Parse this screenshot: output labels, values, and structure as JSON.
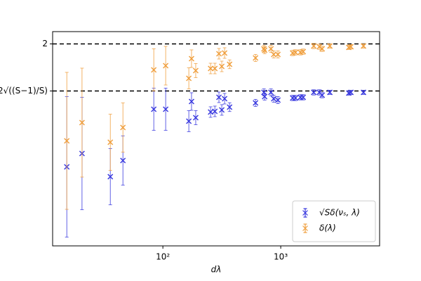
{
  "chart_data": {
    "type": "scatter",
    "xscale": "log",
    "grid": true,
    "legend": "lower right",
    "xlabel": "dλ",
    "xlim": [
      11.6,
      6900
    ],
    "xticks": [
      {
        "value": 100,
        "label": "10²"
      },
      {
        "value": 1000,
        "label": "10³"
      }
    ],
    "ylim": [
      0.85,
      2.07
    ],
    "yticks": [
      {
        "value": 1.732,
        "label": "2√((S−1)/S)"
      },
      2
    ],
    "x": [
      15.3,
      20.6,
      35.8,
      45.8,
      83.7,
      105.6,
      166,
      175,
      190,
      254,
      276,
      299,
      316,
      334,
      368,
      611,
      720,
      730,
      826,
      872,
      946,
      1262,
      1334,
      1468,
      1550,
      1905,
      2125,
      2245,
      2611,
      3777,
      3939,
      5036
    ],
    "series": [
      {
        "name": "√Sδ(νₛ, λ)",
        "color": "#3b3bdf",
        "values": [
          1.3,
          1.376,
          1.244,
          1.336,
          1.628,
          1.628,
          1.56,
          1.672,
          1.58,
          1.612,
          1.616,
          1.696,
          1.624,
          1.688,
          1.64,
          1.664,
          1.724,
          1.7,
          1.724,
          1.688,
          1.68,
          1.692,
          1.692,
          1.696,
          1.696,
          1.724,
          1.724,
          1.708,
          1.724,
          1.72,
          1.724,
          1.724
        ],
        "errors": [
          0.4,
          0.32,
          0.16,
          0.14,
          0.12,
          0.12,
          0.06,
          0.05,
          0.04,
          0.03,
          0.03,
          0.03,
          0.03,
          0.03,
          0.025,
          0.02,
          0.02,
          0.02,
          0.02,
          0.02,
          0.02,
          0.015,
          0.015,
          0.015,
          0.015,
          0.015,
          0.015,
          0.015,
          0.012,
          0.012,
          0.012,
          0.012
        ]
      },
      {
        "name": "δ(λ)",
        "color": "#f0a040",
        "values": [
          1.448,
          1.552,
          1.44,
          1.524,
          1.852,
          1.876,
          1.804,
          1.916,
          1.848,
          1.86,
          1.86,
          1.944,
          1.872,
          1.948,
          1.884,
          1.92,
          1.972,
          1.964,
          1.972,
          1.94,
          1.94,
          1.948,
          1.952,
          1.952,
          1.956,
          1.988,
          1.984,
          1.972,
          1.988,
          1.98,
          1.984,
          1.988
        ],
        "errors": [
          0.39,
          0.31,
          0.16,
          0.14,
          0.12,
          0.11,
          0.06,
          0.05,
          0.04,
          0.03,
          0.03,
          0.03,
          0.03,
          0.03,
          0.025,
          0.02,
          0.02,
          0.02,
          0.02,
          0.02,
          0.02,
          0.015,
          0.015,
          0.015,
          0.015,
          0.015,
          0.015,
          0.015,
          0.012,
          0.012,
          0.012,
          0.012
        ]
      }
    ]
  }
}
